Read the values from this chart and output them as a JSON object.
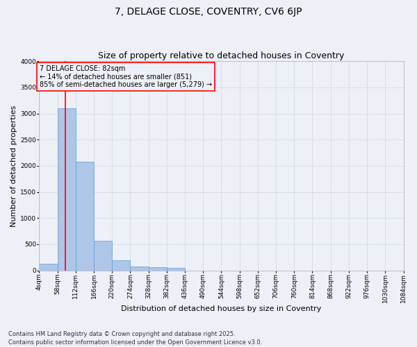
{
  "title": "7, DELAGE CLOSE, COVENTRY, CV6 6JP",
  "subtitle": "Size of property relative to detached houses in Coventry",
  "xlabel": "Distribution of detached houses by size in Coventry",
  "ylabel": "Number of detached properties",
  "bar_color": "#aec6e8",
  "bar_edgecolor": "#5a9fd4",
  "grid_color": "#d0d4e8",
  "background_color": "#eef0f8",
  "annotation_line_color": "red",
  "annotation_box_color": "red",
  "annotation_text": "7 DELAGE CLOSE: 82sqm\n← 14% of detached houses are smaller (851)\n85% of semi-detached houses are larger (5,279) →",
  "property_size_sqm": 82,
  "bins": [
    4,
    58,
    112,
    166,
    220,
    274,
    328,
    382,
    436,
    490,
    544,
    598,
    652,
    706,
    760,
    814,
    868,
    922,
    976,
    1030,
    1084
  ],
  "counts": [
    130,
    3100,
    2080,
    570,
    195,
    75,
    55,
    45,
    0,
    0,
    0,
    0,
    0,
    0,
    0,
    0,
    0,
    0,
    0,
    0
  ],
  "bin_labels": [
    "4sqm",
    "58sqm",
    "112sqm",
    "166sqm",
    "220sqm",
    "274sqm",
    "328sqm",
    "382sqm",
    "436sqm",
    "490sqm",
    "544sqm",
    "598sqm",
    "652sqm",
    "706sqm",
    "760sqm",
    "814sqm",
    "868sqm",
    "922sqm",
    "976sqm",
    "1030sqm",
    "1084sqm"
  ],
  "ylim": [
    0,
    4000
  ],
  "yticks": [
    0,
    500,
    1000,
    1500,
    2000,
    2500,
    3000,
    3500,
    4000
  ],
  "footer": "Contains HM Land Registry data © Crown copyright and database right 2025.\nContains public sector information licensed under the Open Government Licence v3.0.",
  "title_fontsize": 10,
  "subtitle_fontsize": 9,
  "axis_label_fontsize": 8,
  "tick_fontsize": 6.5,
  "footer_fontsize": 6,
  "annotation_fontsize": 7
}
